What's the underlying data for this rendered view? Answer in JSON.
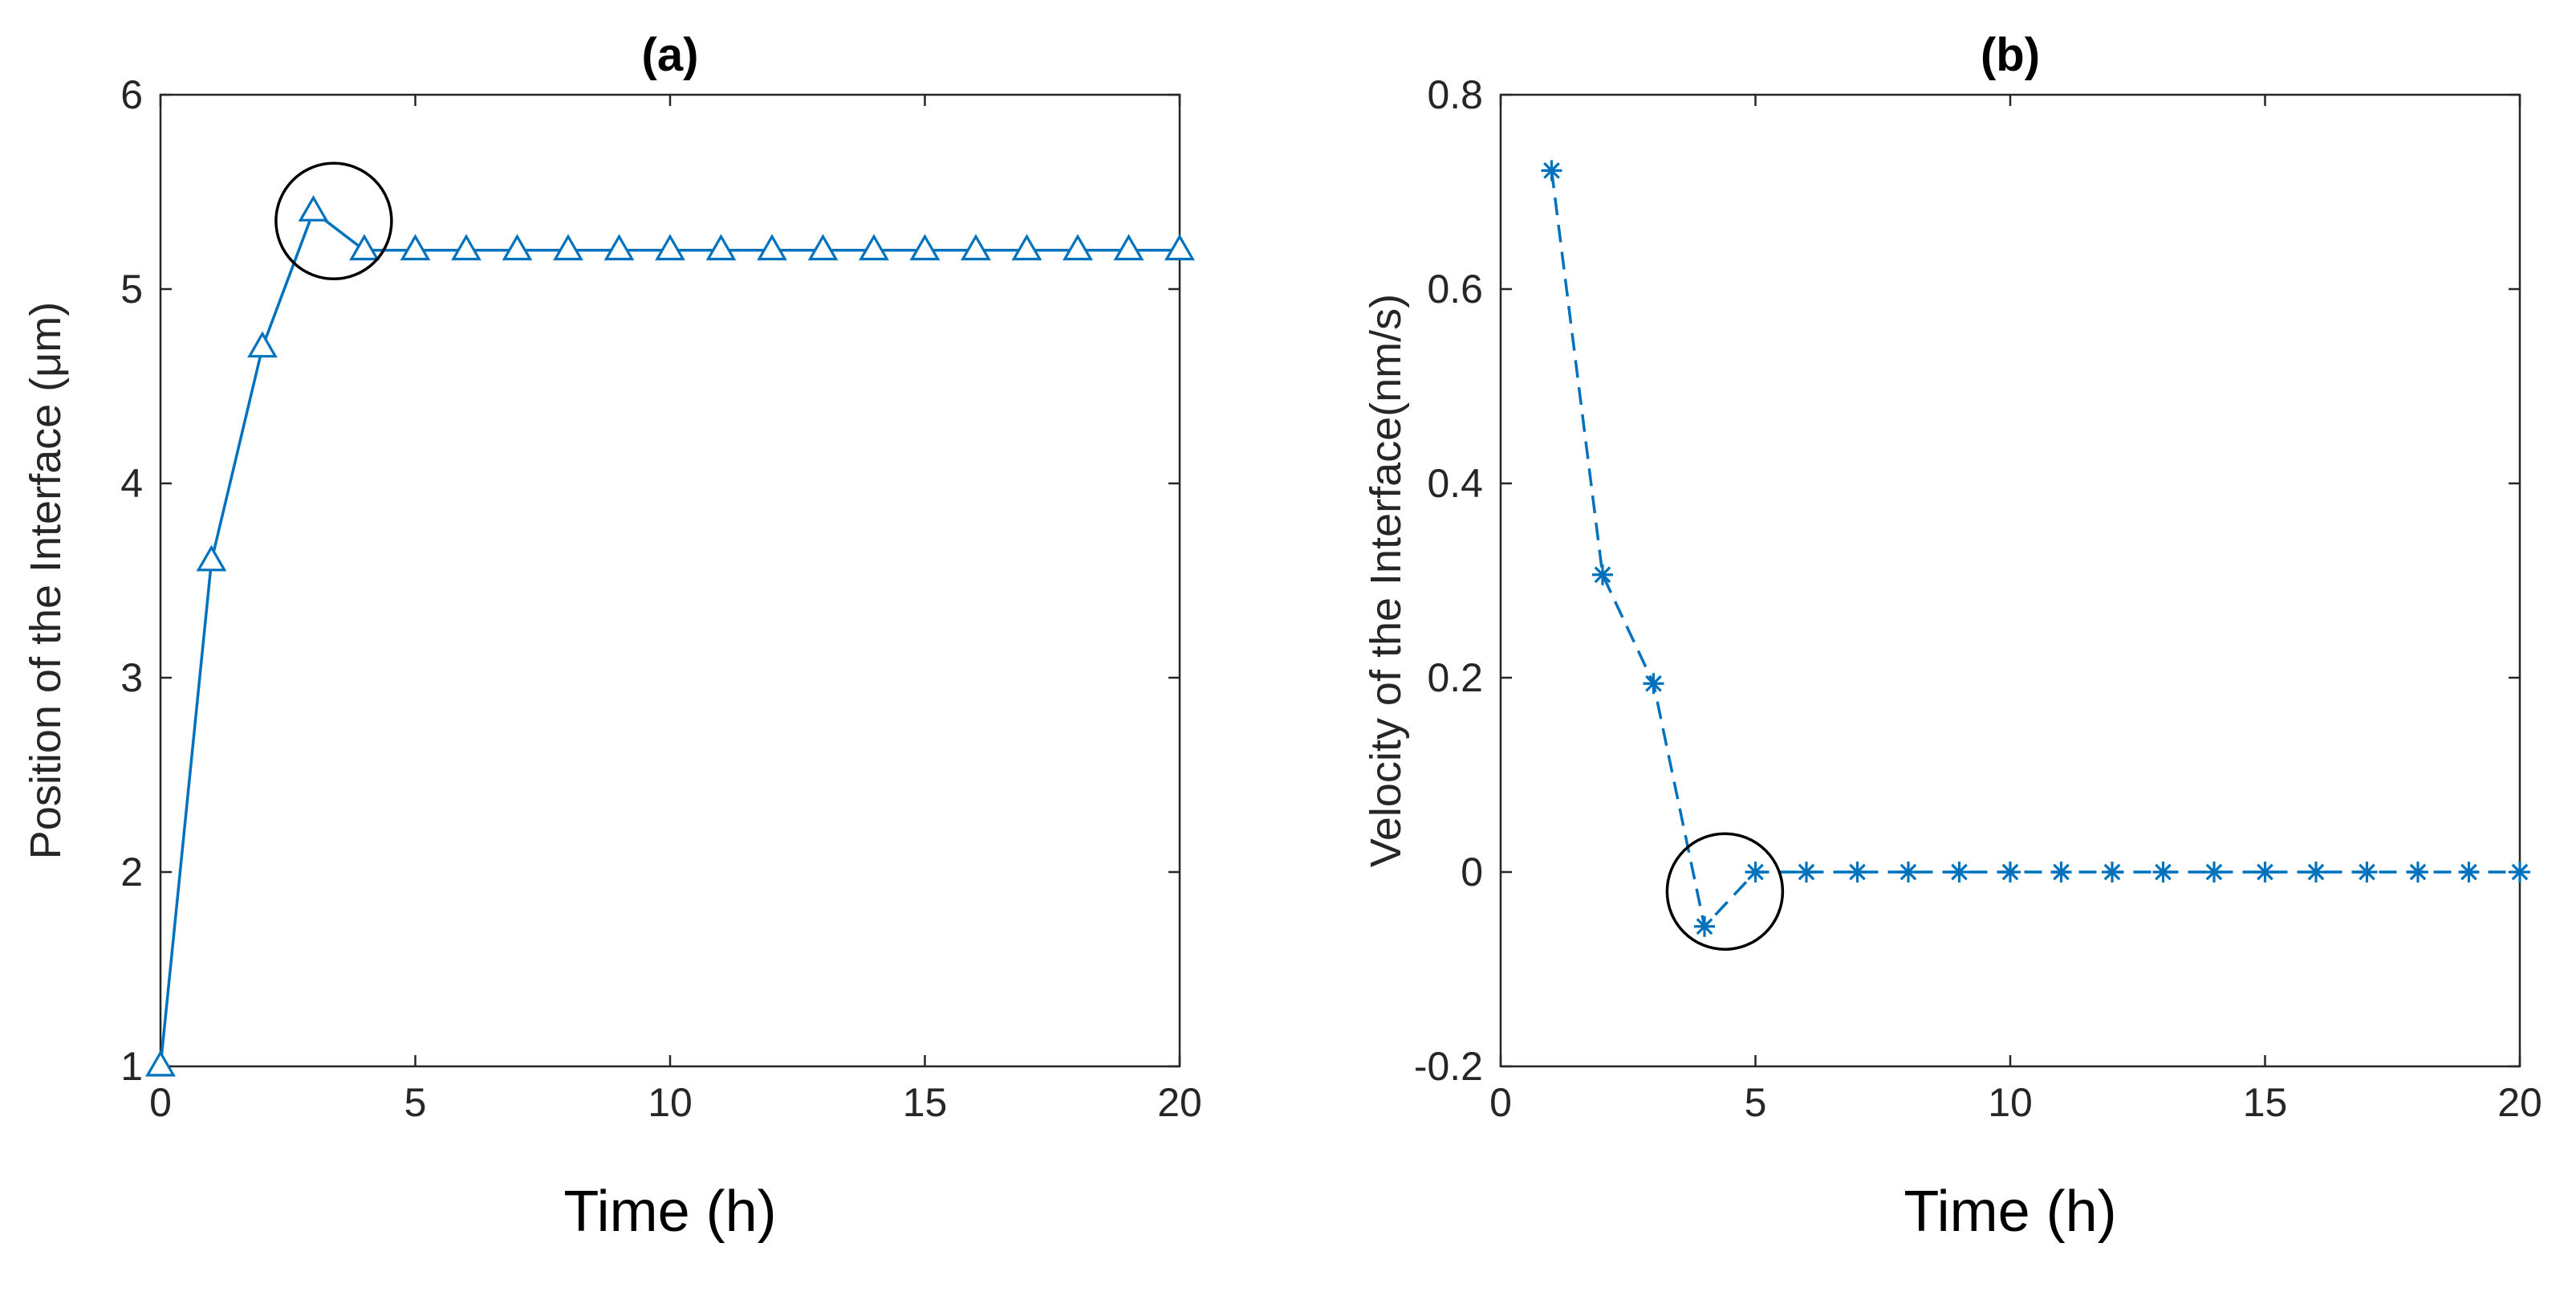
{
  "chart_data": [
    {
      "type": "line",
      "title": "(a)",
      "xlabel": "Time (h)",
      "ylabel": "Position of the Interface (μm)",
      "xlim": [
        0,
        20
      ],
      "ylim": [
        1,
        6
      ],
      "xticks": [
        0,
        5,
        10,
        15,
        20
      ],
      "yticks": [
        1,
        2,
        3,
        4,
        5,
        6
      ],
      "grid": false,
      "series": [
        {
          "name": "Position",
          "color": "#0072BD",
          "line_style": "solid",
          "marker": "triangle",
          "x": [
            0,
            1,
            2,
            3,
            4,
            5,
            6,
            7,
            8,
            9,
            10,
            11,
            12,
            13,
            14,
            15,
            16,
            17,
            18,
            19,
            20
          ],
          "y": [
            1.0,
            3.6,
            4.7,
            5.4,
            5.2,
            5.2,
            5.2,
            5.2,
            5.2,
            5.2,
            5.2,
            5.2,
            5.2,
            5.2,
            5.2,
            5.2,
            5.2,
            5.2,
            5.2,
            5.2,
            5.2
          ]
        }
      ],
      "annotations": [
        {
          "type": "circle",
          "center_x": 3.4,
          "center_y": 5.35,
          "note": "highlight overshoot"
        }
      ]
    },
    {
      "type": "line",
      "title": "(b)",
      "xlabel": "Time (h)",
      "ylabel": "Velocity of the Interface(nm/s)",
      "xlim": [
        0,
        20
      ],
      "ylim": [
        -0.2,
        0.8
      ],
      "xticks": [
        0,
        5,
        10,
        15,
        20
      ],
      "yticks": [
        -0.2,
        0,
        0.2,
        0.4,
        0.6,
        0.8
      ],
      "grid": false,
      "series": [
        {
          "name": "Velocity",
          "color": "#0072BD",
          "line_style": "dashed",
          "marker": "asterisk",
          "x": [
            1,
            2,
            3,
            4,
            5,
            6,
            7,
            8,
            9,
            10,
            11,
            12,
            13,
            14,
            15,
            16,
            17,
            18,
            19,
            20
          ],
          "y": [
            0.722,
            0.306,
            0.194,
            -0.056,
            0,
            0,
            0,
            0,
            0,
            0,
            0,
            0,
            0,
            0,
            0,
            0,
            0,
            0,
            0,
            0
          ]
        }
      ],
      "annotations": [
        {
          "type": "circle",
          "center_x": 4.4,
          "center_y": -0.02,
          "note": "highlight undershoot"
        }
      ]
    }
  ]
}
